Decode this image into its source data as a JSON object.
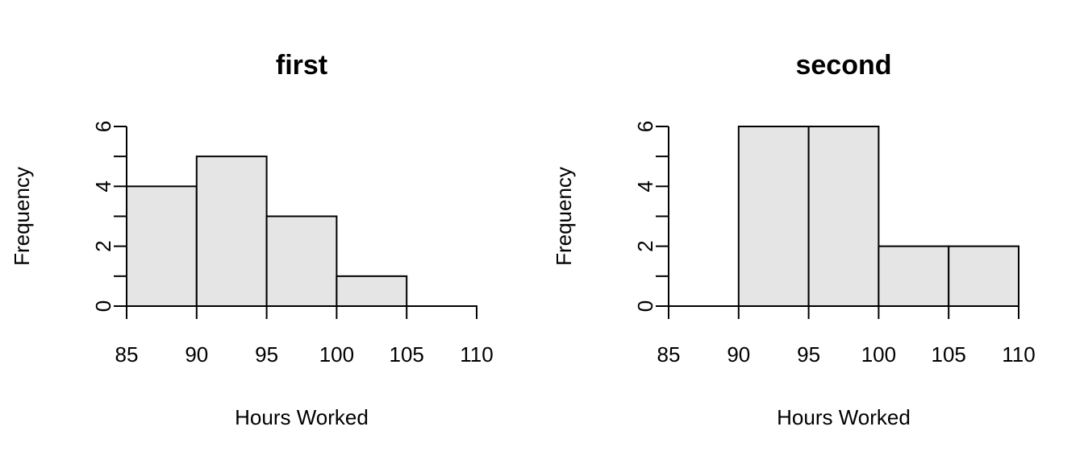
{
  "chart_data": [
    {
      "type": "bar",
      "title": "first",
      "xlabel": "Hours Worked",
      "ylabel": "Frequency",
      "bins": [
        [
          85,
          90
        ],
        [
          90,
          95
        ],
        [
          95,
          100
        ],
        [
          100,
          105
        ],
        [
          105,
          110
        ]
      ],
      "values": [
        4,
        5,
        3,
        1,
        0
      ],
      "xlim": [
        85,
        110
      ],
      "ylim": [
        0,
        6
      ],
      "xticks": [
        85,
        90,
        95,
        100,
        105,
        110
      ],
      "yticks": [
        0,
        2,
        4,
        6
      ],
      "yminor_ticks": [
        1,
        3,
        5
      ],
      "bar_color": "#e5e5e5",
      "edge_color": "#000000",
      "grid": false
    },
    {
      "type": "bar",
      "title": "second",
      "xlabel": "Hours Worked",
      "ylabel": "Frequency",
      "bins": [
        [
          85,
          90
        ],
        [
          90,
          95
        ],
        [
          95,
          100
        ],
        [
          100,
          105
        ],
        [
          105,
          110
        ]
      ],
      "values": [
        0,
        6,
        6,
        2,
        2
      ],
      "xlim": [
        85,
        110
      ],
      "ylim": [
        0,
        6
      ],
      "xticks": [
        85,
        90,
        95,
        100,
        105,
        110
      ],
      "yticks": [
        0,
        2,
        4,
        6
      ],
      "yminor_ticks": [
        1,
        3,
        5
      ],
      "bar_color": "#e5e5e5",
      "edge_color": "#000000",
      "grid": false
    }
  ]
}
